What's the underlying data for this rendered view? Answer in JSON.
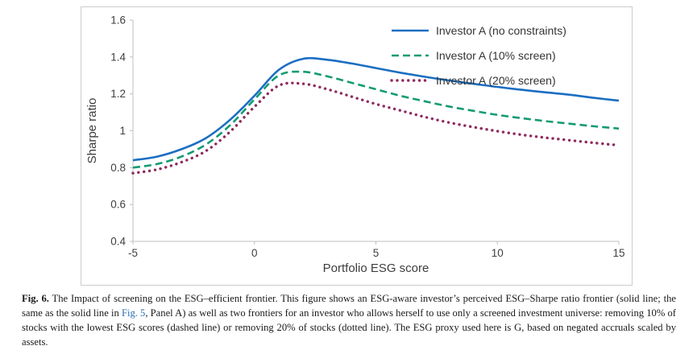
{
  "caption": {
    "label": "Fig. 6.",
    "text_before_link": " The Impact of screening on the ESG–efficient frontier. This figure shows an ESG-aware investor’s perceived ESG–Sharpe ratio frontier (solid line; the same as the solid line in ",
    "link_text": "Fig. 5",
    "text_after_link": ", Panel A) as well as two frontiers for an investor who allows herself to use only a screened investment universe: removing 10% of stocks with the lowest ESG scores (dashed line) or removing 20% of stocks (dotted line). The ESG proxy used here is G, based on negated accruals scaled by assets.",
    "link_color": "#2b6cb0"
  },
  "chart_data": {
    "type": "line",
    "title": "",
    "xlabel": "Portfolio ESG score",
    "ylabel": "Sharpe ratio",
    "xlim": [
      -5,
      15
    ],
    "ylim": [
      0.4,
      1.6
    ],
    "x_ticks": [
      -5,
      0,
      5,
      10,
      15
    ],
    "y_ticks": [
      0.4,
      0.6,
      0.8,
      1,
      1.2,
      1.4,
      1.6
    ],
    "grid": false,
    "legend_position": "top-right",
    "axis_color": "#bfbfbf",
    "tick_label_color": "#404040",
    "x": [
      -5,
      -4,
      -3,
      -2,
      -1,
      0,
      1,
      2,
      3,
      4,
      5,
      6,
      7,
      8,
      9,
      10,
      11,
      12,
      13,
      14,
      15
    ],
    "series": [
      {
        "name": "Investor A (no constraints)",
        "style": "solid",
        "color": "#1b6ec2",
        "values": [
          0.84,
          0.86,
          0.9,
          0.96,
          1.06,
          1.19,
          1.33,
          1.39,
          1.385,
          1.365,
          1.34,
          1.315,
          1.293,
          1.273,
          1.255,
          1.238,
          1.222,
          1.208,
          1.195,
          1.178,
          1.163
        ]
      },
      {
        "name": "Investor A (10% screen)",
        "style": "dashed",
        "color": "#149b73",
        "values": [
          0.8,
          0.82,
          0.86,
          0.925,
          1.03,
          1.17,
          1.3,
          1.32,
          1.295,
          1.26,
          1.225,
          1.19,
          1.16,
          1.132,
          1.108,
          1.086,
          1.068,
          1.052,
          1.038,
          1.024,
          1.012
        ]
      },
      {
        "name": "Investor A (20% screen)",
        "style": "dotted",
        "color": "#8e2a5e",
        "values": [
          0.77,
          0.79,
          0.83,
          0.89,
          0.995,
          1.13,
          1.245,
          1.255,
          1.225,
          1.185,
          1.145,
          1.11,
          1.075,
          1.045,
          1.02,
          0.998,
          0.978,
          0.962,
          0.948,
          0.934,
          0.921
        ]
      }
    ]
  }
}
